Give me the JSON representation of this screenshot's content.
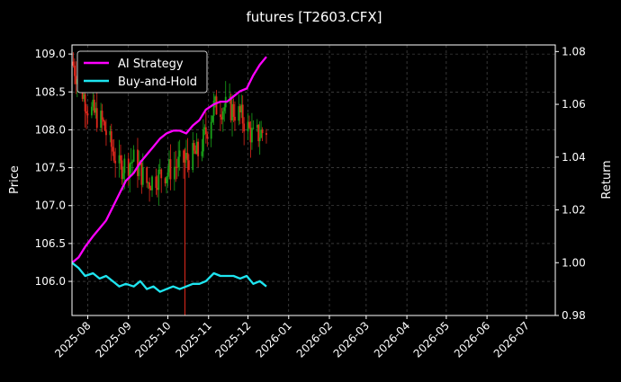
{
  "chart_data": {
    "type": "line",
    "title": "futures [T2603.CFX]",
    "ylabel": "Price",
    "y2label": "Return",
    "xlabel": "",
    "grid": true,
    "legend_placement": "top-left",
    "background": "#000000",
    "x_ticks": [
      "2025-08",
      "2025-09",
      "2025-10",
      "2025-11",
      "2025-12",
      "2026-01",
      "2026-02",
      "2026-03",
      "2026-04",
      "2026-05",
      "2026-06",
      "2026-07"
    ],
    "x_range": [
      "2025-07-20",
      "2026-07-23"
    ],
    "y_left_ticks": [
      "106.0",
      "106.5",
      "107.0",
      "107.5",
      "108.0",
      "108.5",
      "109.0"
    ],
    "y_left_range": [
      105.55,
      109.12
    ],
    "y_right_ticks": [
      "0.98",
      "1.00",
      "1.02",
      "1.04",
      "1.06",
      "1.08"
    ],
    "y_right_range": [
      0.98,
      1.0825
    ],
    "candles": {
      "up_color": "#19a319",
      "down_color": "#e0281c",
      "notable_spike": {
        "date": "2025-10-14",
        "low": 105.55,
        "high": 107.75
      }
    },
    "series": [
      {
        "name": "AI Strategy",
        "axis": "right",
        "color": "#ff00ff",
        "x": [
          "2025-07-20",
          "2025-07-25",
          "2025-07-30",
          "2025-08-05",
          "2025-08-10",
          "2025-08-15",
          "2025-08-20",
          "2025-08-25",
          "2025-08-30",
          "2025-09-05",
          "2025-09-10",
          "2025-09-15",
          "2025-09-20",
          "2025-09-25",
          "2025-09-30",
          "2025-10-05",
          "2025-10-10",
          "2025-10-15",
          "2025-10-20",
          "2025-10-25",
          "2025-10-30",
          "2025-11-05",
          "2025-11-10",
          "2025-11-15",
          "2025-11-20",
          "2025-11-25",
          "2025-11-30",
          "2025-12-05",
          "2025-12-10",
          "2025-12-15"
        ],
        "values": [
          1.0,
          1.002,
          1.006,
          1.01,
          1.013,
          1.016,
          1.021,
          1.026,
          1.031,
          1.034,
          1.038,
          1.041,
          1.044,
          1.047,
          1.049,
          1.05,
          1.05,
          1.049,
          1.052,
          1.054,
          1.058,
          1.06,
          1.061,
          1.061,
          1.063,
          1.065,
          1.066,
          1.071,
          1.075,
          1.078
        ]
      },
      {
        "name": "Buy-and-Hold",
        "axis": "right",
        "color": "#1ee5f0",
        "x": [
          "2025-07-20",
          "2025-07-25",
          "2025-07-30",
          "2025-08-05",
          "2025-08-10",
          "2025-08-15",
          "2025-08-20",
          "2025-08-25",
          "2025-08-30",
          "2025-09-05",
          "2025-09-10",
          "2025-09-15",
          "2025-09-20",
          "2025-09-25",
          "2025-09-30",
          "2025-10-05",
          "2025-10-10",
          "2025-10-15",
          "2025-10-20",
          "2025-10-25",
          "2025-10-30",
          "2025-11-05",
          "2025-11-10",
          "2025-11-15",
          "2025-11-20",
          "2025-11-25",
          "2025-11-30",
          "2025-12-05",
          "2025-12-10",
          "2025-12-15"
        ],
        "values": [
          1.0,
          0.998,
          0.995,
          0.996,
          0.994,
          0.995,
          0.993,
          0.991,
          0.992,
          0.991,
          0.993,
          0.99,
          0.991,
          0.989,
          0.99,
          0.991,
          0.99,
          0.991,
          0.992,
          0.992,
          0.993,
          0.996,
          0.995,
          0.995,
          0.995,
          0.994,
          0.995,
          0.992,
          0.993,
          0.991
        ]
      }
    ]
  }
}
